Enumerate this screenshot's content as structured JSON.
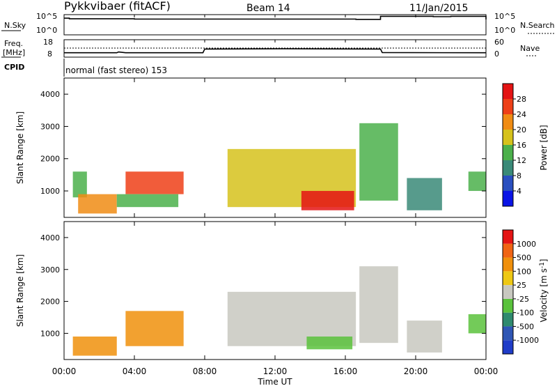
{
  "header": {
    "station": "Pykkvibaer (fitACF)",
    "beam": "Beam 14",
    "date": "11/Jan/2015"
  },
  "strip_labels": {
    "nsky": "N.Sky",
    "nsearch": "N.Search",
    "freq_line1": "Freq.",
    "freq_line2": "[MHz]",
    "nave": "Nave",
    "cpid": "CPID",
    "nsky_ticks": [
      "10^5",
      "10^0"
    ],
    "nsearch_ticks": [
      "10^5",
      "10^0"
    ],
    "freq_ticks": [
      "18",
      "8"
    ],
    "nave_ticks": [
      "60",
      "0"
    ]
  },
  "cpid_text": "normal (fast stereo) 153",
  "x_axis": {
    "label": "Time UT",
    "ticks": [
      "00:00",
      "04:00",
      "08:00",
      "12:00",
      "16:00",
      "20:00",
      "00:00"
    ],
    "range_hours": [
      0,
      24
    ]
  },
  "power_panel": {
    "ylabel": "Slant Range [km]",
    "yticks": [
      "1000",
      "2000",
      "3000",
      "4000"
    ],
    "colorbar_label": "Power [dB]",
    "colorbar_ticks": [
      "4",
      "8",
      "12",
      "16",
      "20",
      "24",
      "28"
    ],
    "colors": [
      "#0a14e6",
      "#2a4fc0",
      "#3a8a78",
      "#4bb04b",
      "#d6c21c",
      "#f08c14",
      "#ee4018",
      "#e41414"
    ]
  },
  "velocity_panel": {
    "ylabel": "Slant Range [km]",
    "yticks": [
      "1000",
      "2000",
      "3000",
      "4000"
    ],
    "colorbar_label": "Velocity [m s^-1]",
    "colorbar_ticks": [
      "1000",
      "500",
      "100",
      "25",
      "-25",
      "-100",
      "-500",
      "-1000"
    ],
    "colors": [
      "#1f3cc8",
      "#2f56b4",
      "#2f8a6e",
      "#5ac23c",
      "#c8c8c0",
      "#eec814",
      "#f0900c",
      "#f06414",
      "#e41414"
    ]
  },
  "chart_data": [
    {
      "type": "line",
      "title": "N.Sky / N.Search",
      "x_hours": [
        0,
        0.3,
        4,
        8,
        12,
        15,
        16.6,
        18,
        20,
        21,
        22,
        23.5,
        24
      ],
      "series": [
        {
          "values": [
            5,
            4.8,
            4.7,
            4.7,
            4.7,
            4.7,
            4.6,
            5.6,
            5.6,
            5.5,
            5.6,
            5.6,
            4.6
          ]
        }
      ]
    },
    {
      "type": "line",
      "title": "Freq.",
      "x_hours": [
        0,
        3.0,
        3.1,
        3.5,
        7.9,
        8.0,
        12.5,
        18,
        18.1,
        24
      ],
      "series": [
        {
          "values": [
            10.3,
            10.3,
            10.8,
            10.3,
            10.3,
            12.6,
            12.8,
            12.6,
            10.4,
            10.3
          ]
        }
      ]
    },
    {
      "type": "heatmap",
      "quantity": "Power [dB]",
      "x_range_hours": [
        0,
        24
      ],
      "y_range_km": [
        180,
        4500
      ],
      "regions": [
        {
          "t": [
            0.5,
            1.3
          ],
          "r": [
            800,
            1600
          ],
          "level": 3
        },
        {
          "t": [
            0.8,
            3.0
          ],
          "r": [
            300,
            900
          ],
          "level": 5
        },
        {
          "t": [
            3.5,
            6.8
          ],
          "r": [
            900,
            1600
          ],
          "level": 6
        },
        {
          "t": [
            3.0,
            6.5
          ],
          "r": [
            500,
            900
          ],
          "level": 3
        },
        {
          "t": [
            9.3,
            16.6
          ],
          "r": [
            500,
            2300
          ],
          "level": 4
        },
        {
          "t": [
            13.5,
            16.5
          ],
          "r": [
            400,
            1000
          ],
          "level": 7
        },
        {
          "t": [
            16.8,
            19.0
          ],
          "r": [
            700,
            3100
          ],
          "level": 3
        },
        {
          "t": [
            19.5,
            21.5
          ],
          "r": [
            400,
            1400
          ],
          "level": 2
        },
        {
          "t": [
            23.0,
            24.0
          ],
          "r": [
            1000,
            1600
          ],
          "level": 3
        }
      ]
    },
    {
      "type": "heatmap",
      "quantity": "Velocity [m s^-1]",
      "x_range_hours": [
        0,
        24
      ],
      "y_range_km": [
        180,
        4500
      ],
      "regions": [
        {
          "t": [
            0.5,
            3.0
          ],
          "r": [
            300,
            900
          ],
          "level": 6
        },
        {
          "t": [
            3.5,
            6.8
          ],
          "r": [
            600,
            1700
          ],
          "level": 6
        },
        {
          "t": [
            9.3,
            16.6
          ],
          "r": [
            600,
            2300
          ],
          "level": 4
        },
        {
          "t": [
            13.8,
            16.4
          ],
          "r": [
            500,
            900
          ],
          "level": 3
        },
        {
          "t": [
            16.8,
            19.0
          ],
          "r": [
            700,
            3100
          ],
          "level": 4
        },
        {
          "t": [
            19.5,
            21.5
          ],
          "r": [
            400,
            1400
          ],
          "level": 4
        },
        {
          "t": [
            23.0,
            24.0
          ],
          "r": [
            1000,
            1600
          ],
          "level": 3
        }
      ]
    }
  ]
}
